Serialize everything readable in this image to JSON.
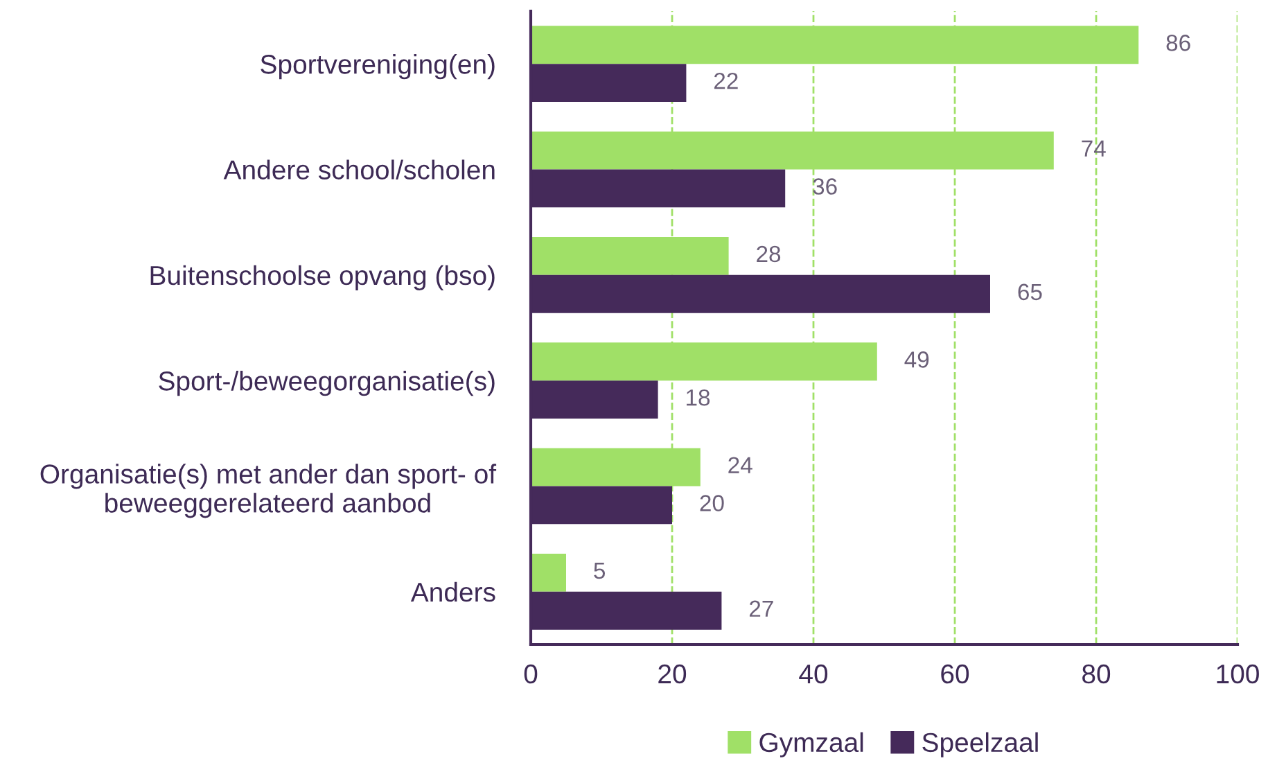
{
  "chart_data": {
    "type": "bar",
    "orientation": "horizontal",
    "categories": [
      "Sportvereniging(en)",
      "Andere school/scholen",
      "Buitenschoolse opvang (bso)",
      "Sport-/beweegorganisatie(s)",
      "Organisatie(s) met ander dan sport- of\nbeweeggerelateerd aanbod",
      "Anders"
    ],
    "series": [
      {
        "name": "Gymzaal",
        "color": "#a0e067",
        "values": [
          86,
          74,
          28,
          49,
          24,
          5
        ]
      },
      {
        "name": "Speelzaal",
        "color": "#452a5a",
        "values": [
          22,
          36,
          65,
          18,
          20,
          27
        ]
      }
    ],
    "xlim": [
      0,
      100
    ],
    "xticks": [
      0,
      20,
      40,
      60,
      80,
      100
    ],
    "grid": "x",
    "legend": "bottom",
    "data_labels": true
  }
}
